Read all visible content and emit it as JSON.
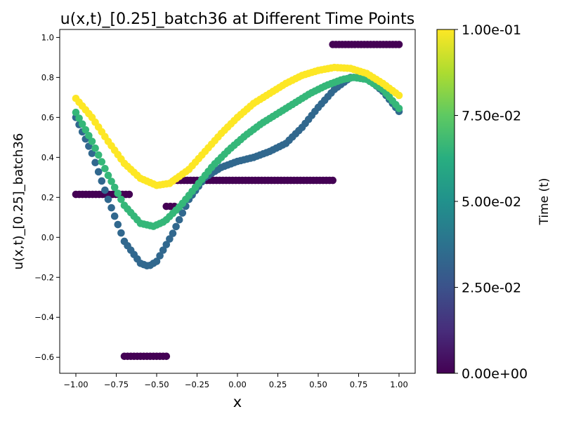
{
  "chart_data": {
    "type": "scatter",
    "title": "u(x,t)_[0.25]_batch36 at Different Time Points",
    "xlabel": "x",
    "ylabel": "u(x,t)_[0.25]_batch36",
    "xlim": [
      -1.1,
      1.1
    ],
    "ylim": [
      -0.68,
      1.04
    ],
    "xticks": [
      -1.0,
      -0.75,
      -0.5,
      -0.25,
      0.0,
      0.25,
      0.5,
      0.75,
      1.0
    ],
    "xtick_labels": [
      "−1.00",
      "−0.75",
      "−0.50",
      "−0.25",
      "0.00",
      "0.25",
      "0.50",
      "0.75",
      "1.00"
    ],
    "yticks": [
      -0.6,
      -0.4,
      -0.2,
      0.0,
      0.2,
      0.4,
      0.6,
      0.8,
      1.0
    ],
    "ytick_labels": [
      "−0.6",
      "−0.4",
      "−0.2",
      "0.0",
      "0.2",
      "0.4",
      "0.6",
      "0.8",
      "1.0"
    ],
    "grid": false,
    "colorbar": {
      "label": "Time (t)",
      "colormap": "viridis",
      "range": [
        0.0,
        0.1
      ],
      "ticks": [
        0.0,
        0.025,
        0.05,
        0.075,
        0.1
      ],
      "tick_labels": [
        "0.00e+00",
        "2.50e-02",
        "5.00e-02",
        "7.50e-02",
        "1.00e-01"
      ]
    },
    "series": [
      {
        "t": 0.0,
        "color": "#440154",
        "segments": [
          {
            "x": [
              -1.0,
              -0.67
            ],
            "y": [
              0.215,
              0.215
            ]
          },
          {
            "x": [
              -0.7,
              -0.44
            ],
            "y": [
              -0.595,
              -0.595
            ]
          },
          {
            "x": [
              -0.44,
              -0.39
            ],
            "y": [
              0.155,
              0.155
            ]
          },
          {
            "x": [
              -0.39,
              0.59
            ],
            "y": [
              0.285,
              0.285
            ]
          },
          {
            "x": [
              0.59,
              1.0
            ],
            "y": [
              0.965,
              0.965
            ]
          }
        ]
      },
      {
        "t": 0.025,
        "color": "#31688e",
        "points": [
          [
            -1.0,
            0.6
          ],
          [
            -0.9,
            0.42
          ],
          [
            -0.8,
            0.19
          ],
          [
            -0.7,
            -0.02
          ],
          [
            -0.6,
            -0.13
          ],
          [
            -0.55,
            -0.145
          ],
          [
            -0.5,
            -0.12
          ],
          [
            -0.4,
            0.02
          ],
          [
            -0.3,
            0.19
          ],
          [
            -0.2,
            0.3
          ],
          [
            -0.1,
            0.35
          ],
          [
            0.0,
            0.38
          ],
          [
            0.1,
            0.4
          ],
          [
            0.2,
            0.43
          ],
          [
            0.3,
            0.47
          ],
          [
            0.4,
            0.55
          ],
          [
            0.5,
            0.65
          ],
          [
            0.6,
            0.74
          ],
          [
            0.7,
            0.8
          ],
          [
            0.8,
            0.8
          ],
          [
            0.9,
            0.73
          ],
          [
            1.0,
            0.63
          ]
        ]
      },
      {
        "t": 0.075,
        "color": "#35b779",
        "points": [
          [
            -1.0,
            0.625
          ],
          [
            -0.9,
            0.48
          ],
          [
            -0.8,
            0.31
          ],
          [
            -0.7,
            0.16
          ],
          [
            -0.6,
            0.07
          ],
          [
            -0.52,
            0.055
          ],
          [
            -0.45,
            0.08
          ],
          [
            -0.35,
            0.16
          ],
          [
            -0.25,
            0.26
          ],
          [
            -0.15,
            0.36
          ],
          [
            -0.05,
            0.44
          ],
          [
            0.05,
            0.51
          ],
          [
            0.15,
            0.57
          ],
          [
            0.25,
            0.62
          ],
          [
            0.35,
            0.67
          ],
          [
            0.45,
            0.72
          ],
          [
            0.55,
            0.76
          ],
          [
            0.65,
            0.79
          ],
          [
            0.72,
            0.8
          ],
          [
            0.8,
            0.79
          ],
          [
            0.9,
            0.74
          ],
          [
            1.0,
            0.645
          ]
        ]
      },
      {
        "t": 0.1,
        "color": "#fde725",
        "points": [
          [
            -1.0,
            0.695
          ],
          [
            -0.9,
            0.6
          ],
          [
            -0.8,
            0.48
          ],
          [
            -0.7,
            0.37
          ],
          [
            -0.6,
            0.295
          ],
          [
            -0.5,
            0.26
          ],
          [
            -0.42,
            0.27
          ],
          [
            -0.3,
            0.34
          ],
          [
            -0.2,
            0.43
          ],
          [
            -0.1,
            0.52
          ],
          [
            0.0,
            0.6
          ],
          [
            0.1,
            0.67
          ],
          [
            0.2,
            0.72
          ],
          [
            0.3,
            0.77
          ],
          [
            0.4,
            0.81
          ],
          [
            0.5,
            0.835
          ],
          [
            0.6,
            0.85
          ],
          [
            0.7,
            0.845
          ],
          [
            0.8,
            0.82
          ],
          [
            0.9,
            0.77
          ],
          [
            1.0,
            0.71
          ]
        ]
      }
    ]
  }
}
